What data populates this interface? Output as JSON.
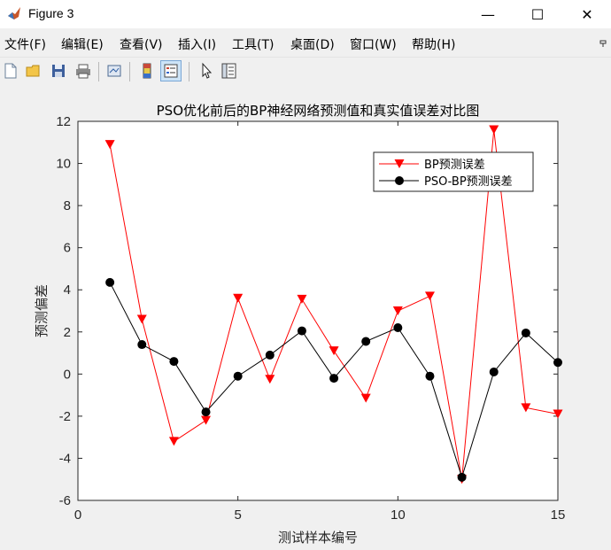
{
  "window": {
    "title": "Figure 3",
    "minimize": "—",
    "maximize": "☐",
    "close": "✕"
  },
  "menu": [
    "文件(F)",
    "编辑(E)",
    "查看(V)",
    "插入(I)",
    "工具(T)",
    "桌面(D)",
    "窗口(W)",
    "帮助(H)"
  ],
  "toolbar": [
    "new-figure",
    "open-file",
    "save",
    "print",
    "link-data",
    "colorbar",
    "legend",
    "pointer",
    "property-inspector"
  ],
  "chart_data": {
    "type": "line",
    "title": "PSO优化前后的BP神经网络预测值和真实值误差对比图",
    "xlabel": "测试样本编号",
    "ylabel": "预测偏差",
    "xlim": [
      0,
      15
    ],
    "ylim": [
      -6,
      12
    ],
    "xticks": [
      0,
      5,
      10,
      15
    ],
    "yticks": [
      -6,
      -4,
      -2,
      0,
      2,
      4,
      6,
      8,
      10,
      12
    ],
    "grid": false,
    "legend_position": "top-right",
    "x": [
      1,
      2,
      3,
      4,
      5,
      6,
      7,
      8,
      9,
      10,
      11,
      12,
      13,
      14,
      15
    ],
    "series": [
      {
        "name": "BP预测误差",
        "color": "#ff0000",
        "marker": "triangle-down",
        "values": [
          10.9,
          2.6,
          -3.2,
          -2.2,
          3.6,
          -0.25,
          3.55,
          1.1,
          -1.15,
          3.0,
          3.7,
          -5.0,
          11.6,
          -1.6,
          -1.9
        ]
      },
      {
        "name": "PSO-BP预测误差",
        "color": "#000000",
        "marker": "circle",
        "values": [
          4.35,
          1.4,
          0.6,
          -1.8,
          -0.1,
          0.9,
          2.05,
          -0.2,
          1.55,
          2.2,
          -0.1,
          -4.9,
          0.1,
          1.95,
          0.55
        ]
      }
    ]
  }
}
